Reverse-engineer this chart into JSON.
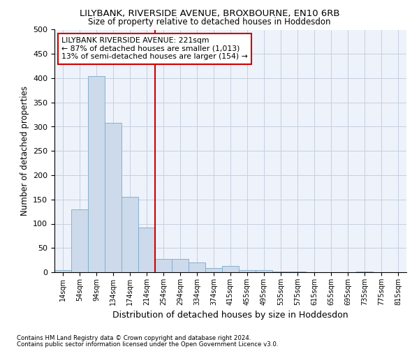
{
  "title": "LILYBANK, RIVERSIDE AVENUE, BROXBOURNE, EN10 6RB",
  "subtitle": "Size of property relative to detached houses in Hoddesdon",
  "xlabel": "Distribution of detached houses by size in Hoddesdon",
  "ylabel": "Number of detached properties",
  "bins": [
    "14sqm",
    "54sqm",
    "94sqm",
    "134sqm",
    "174sqm",
    "214sqm",
    "254sqm",
    "294sqm",
    "334sqm",
    "374sqm",
    "415sqm",
    "455sqm",
    "495sqm",
    "535sqm",
    "575sqm",
    "615sqm",
    "655sqm",
    "695sqm",
    "735sqm",
    "775sqm",
    "815sqm"
  ],
  "values": [
    5,
    130,
    405,
    308,
    155,
    92,
    28,
    28,
    20,
    8,
    13,
    5,
    5,
    2,
    1,
    0,
    0,
    0,
    1,
    0,
    0
  ],
  "bar_color": "#ccdaeb",
  "bar_edge_color": "#7aaac8",
  "grid_color": "#c5cfe0",
  "background_color": "#eef2fb",
  "red_line_color": "#cc0000",
  "annotation_text": "LILYBANK RIVERSIDE AVENUE: 221sqm\n← 87% of detached houses are smaller (1,013)\n13% of semi-detached houses are larger (154) →",
  "annotation_box_color": "#cc0000",
  "footnote1": "Contains HM Land Registry data © Crown copyright and database right 2024.",
  "footnote2": "Contains public sector information licensed under the Open Government Licence v3.0.",
  "ylim": [
    0,
    500
  ],
  "yticks": [
    0,
    50,
    100,
    150,
    200,
    250,
    300,
    350,
    400,
    450,
    500
  ]
}
